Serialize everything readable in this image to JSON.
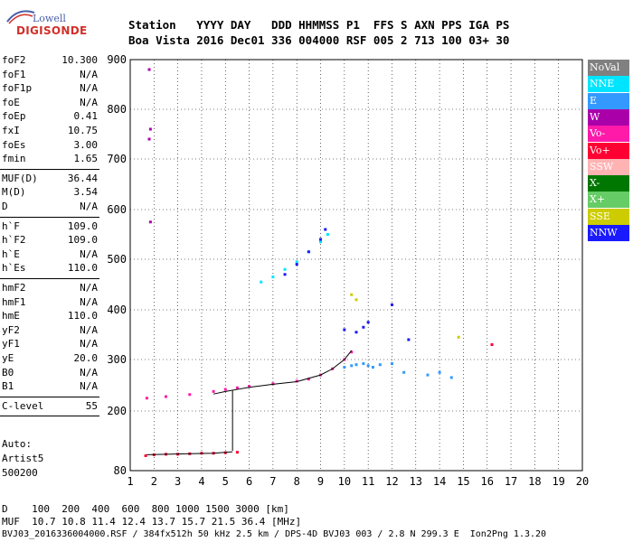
{
  "logo": {
    "line1": "Lowell",
    "line2": "DIGISONDE"
  },
  "header": {
    "row1": "Station   YYYY DAY   DDD HHMMSS P1  FFS S AXN PPS IGA PS",
    "row2": "Boa Vista 2016 Dec01 336 004000 RSF 005 2 713 100 03+ 30"
  },
  "params": [
    {
      "k": "foF2",
      "v": "10.300"
    },
    {
      "k": "foF1",
      "v": "N/A"
    },
    {
      "k": "foF1p",
      "v": "N/A"
    },
    {
      "k": "foE",
      "v": "N/A"
    },
    {
      "k": "foEp",
      "v": "0.41"
    },
    {
      "k": "fxI",
      "v": "10.75"
    },
    {
      "k": "foEs",
      "v": "3.00"
    },
    {
      "k": "fmin",
      "v": "1.65"
    },
    {
      "k": "MUF(D)",
      "v": "36.44"
    },
    {
      "k": "M(D)",
      "v": "3.54"
    },
    {
      "k": "D",
      "v": "N/A"
    },
    {
      "k": "h`F",
      "v": "109.0"
    },
    {
      "k": "h`F2",
      "v": "109.0"
    },
    {
      "k": "h`E",
      "v": "N/A"
    },
    {
      "k": "h`Es",
      "v": "110.0"
    },
    {
      "k": "hmF2",
      "v": "N/A"
    },
    {
      "k": "hmF1",
      "v": "N/A"
    },
    {
      "k": "hmE",
      "v": "110.0"
    },
    {
      "k": "yF2",
      "v": "N/A"
    },
    {
      "k": "yF1",
      "v": "N/A"
    },
    {
      "k": "yE",
      "v": "20.0"
    },
    {
      "k": "B0",
      "v": "N/A"
    },
    {
      "k": "B1",
      "v": "N/A"
    },
    {
      "k": "C-level",
      "v": "55"
    }
  ],
  "notes": {
    "auto": "Auto:",
    "artist": "Artist5",
    "code": "500200"
  },
  "legend": [
    {
      "label": "NoVal",
      "color": "#808080"
    },
    {
      "label": "NNE",
      "color": "#00e5ff"
    },
    {
      "label": "E",
      "color": "#3399ff"
    },
    {
      "label": "W",
      "color": "#aa00aa"
    },
    {
      "label": "Vo-",
      "color": "#ff1aaa"
    },
    {
      "label": "Vo+",
      "color": "#ff0033"
    },
    {
      "label": "SSW",
      "color": "#ffb3b3"
    },
    {
      "label": "X-",
      "color": "#007700"
    },
    {
      "label": "X+",
      "color": "#66cc66"
    },
    {
      "label": "SSE",
      "color": "#cccc00"
    },
    {
      "label": "NNW",
      "color": "#1a1aff"
    }
  ],
  "bottom": {
    "d_row": "D    100  200  400  600  800 1000 1500 3000 [km]",
    "muf_row": "MUF  10.7 10.8 11.4 12.4 13.7 15.7 21.5 36.4 [MHz]",
    "file_row": "BVJ03_2016336004000.RSF / 384fx512h 50 kHz 2.5 km / DPS-4D BVJ03 003 / 2.8 N 299.3 E  Ion2Png 1.3.20"
  },
  "chart_data": {
    "type": "scatter",
    "x_ticks": [
      "1",
      "2",
      "3",
      "4",
      "5",
      "6",
      "7",
      "8",
      "9",
      "10",
      "11",
      "12",
      "13",
      "14",
      "15",
      "16",
      "17",
      "18",
      "19",
      "20"
    ],
    "y_ticks": [
      "80",
      "200",
      "300",
      "400",
      "500",
      "600",
      "700",
      "800",
      "900"
    ],
    "xlim": [
      1,
      20
    ],
    "ylim": [
      80,
      900
    ],
    "x_unit": "MHz",
    "y_unit": "km",
    "traces": [
      {
        "name": "E/Es low-height trace",
        "color": "#ff0033",
        "x": [
          1.65,
          2.0,
          2.5,
          3.0,
          3.5,
          4.0,
          4.5,
          5.0,
          5.5
        ],
        "y": [
          110,
          112,
          113,
          113,
          114,
          115,
          115,
          116,
          117
        ]
      },
      {
        "name": "F-layer trace",
        "color": "#ff1aaa",
        "x": [
          1.7,
          2.5,
          3.5,
          4.5,
          5.0,
          5.5,
          6.0,
          7.0,
          8.0,
          8.5,
          9.0,
          9.5,
          10.0,
          10.3
        ],
        "y": [
          225,
          228,
          232,
          238,
          242,
          245,
          248,
          253,
          258,
          262,
          270,
          282,
          300,
          315
        ]
      },
      {
        "name": "F-layer E side",
        "color": "#3399ff",
        "x": [
          10.0,
          10.3,
          10.5,
          10.8,
          11.0,
          11.2,
          11.5,
          12.0,
          12.5,
          13.5,
          14.0,
          14.5
        ],
        "y": [
          285,
          288,
          290,
          292,
          288,
          285,
          290,
          292,
          275,
          270,
          275,
          265
        ]
      },
      {
        "name": "second-hop trace",
        "color": "#00e5ff",
        "x": [
          6.5,
          7.0,
          7.5,
          8.0,
          8.5,
          9.0,
          9.3
        ],
        "y": [
          455,
          465,
          480,
          495,
          515,
          535,
          550
        ]
      },
      {
        "name": "second-hop NNW",
        "color": "#1a1aff",
        "x": [
          7.5,
          8.0,
          8.5,
          9.0,
          9.2
        ],
        "y": [
          470,
          490,
          515,
          540,
          560
        ]
      },
      {
        "name": "high points W",
        "color": "#aa00aa",
        "x": [
          1.8,
          1.85,
          1.8,
          1.85
        ],
        "y": [
          880,
          760,
          740,
          575
        ]
      },
      {
        "name": "scattered NNW",
        "color": "#1a1aff",
        "x": [
          10.0,
          10.5,
          10.8,
          11.0,
          12.0,
          12.7
        ],
        "y": [
          360,
          355,
          365,
          375,
          410,
          340
        ]
      },
      {
        "name": "SSE",
        "color": "#cccc00",
        "x": [
          10.3,
          10.5,
          14.8
        ],
        "y": [
          430,
          420,
          345
        ]
      },
      {
        "name": "Vo+ far",
        "color": "#ff0033",
        "x": [
          16.2
        ],
        "y": [
          330
        ]
      }
    ],
    "lines": [
      {
        "x": [
          4.5,
          5.0,
          5.5,
          6.0,
          7.0,
          8.0,
          9.0,
          9.5,
          10.0,
          10.3
        ],
        "y": [
          233,
          238,
          242,
          246,
          252,
          257,
          270,
          282,
          300,
          318
        ]
      },
      {
        "x": [
          5.3,
          5.3
        ],
        "y": [
          120,
          240
        ]
      },
      {
        "x": [
          1.7,
          2.5,
          3.5,
          4.5,
          5.3
        ],
        "y": [
          112,
          113,
          114,
          115,
          118
        ]
      }
    ]
  }
}
